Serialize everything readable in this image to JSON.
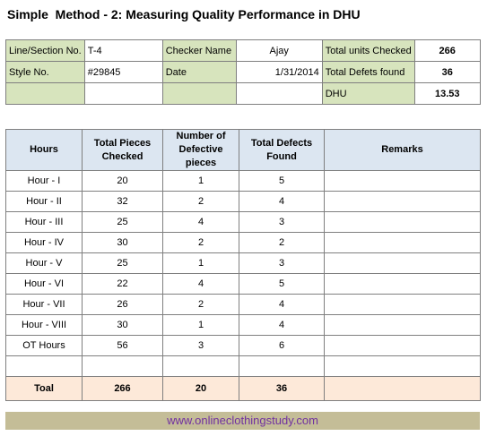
{
  "title": "Simple  Method - 2: Measuring Quality Performance in DHU",
  "info": {
    "line_label": "Line/Section No.",
    "line_value": "T-4",
    "checker_label": "Checker Name",
    "checker_value": "Ajay",
    "total_units_label": "Total units Checked",
    "total_units_value": "266",
    "style_label": "Style No.",
    "style_value": "#29845",
    "date_label": "Date",
    "date_value": "1/31/2014",
    "total_defects_label": "Total Defets found",
    "total_defects_value": "36",
    "dhu_label": "DHU",
    "dhu_value": "13.53"
  },
  "table": {
    "headers": [
      "Hours",
      "Total Pieces Checked",
      "Number of Defective pieces",
      "Total Defects Found",
      "Remarks"
    ],
    "rows": [
      [
        "Hour - I",
        "20",
        "1",
        "5",
        ""
      ],
      [
        "Hour - II",
        "32",
        "2",
        "4",
        ""
      ],
      [
        "Hour - III",
        "25",
        "4",
        "3",
        ""
      ],
      [
        "Hour - IV",
        "30",
        "2",
        "2",
        ""
      ],
      [
        "Hour - V",
        "25",
        "1",
        "3",
        ""
      ],
      [
        "Hour - VI",
        "22",
        "4",
        "5",
        ""
      ],
      [
        "Hour - VII",
        "26",
        "2",
        "4",
        ""
      ],
      [
        "Hour - VIII",
        "30",
        "1",
        "4",
        ""
      ],
      [
        "OT Hours",
        "56",
        "3",
        "6",
        ""
      ],
      [
        "",
        "",
        "",
        "",
        ""
      ]
    ],
    "total": [
      "Toal",
      "266",
      "20",
      "36",
      ""
    ]
  },
  "footer": "www.onlineclothingstudy.com"
}
